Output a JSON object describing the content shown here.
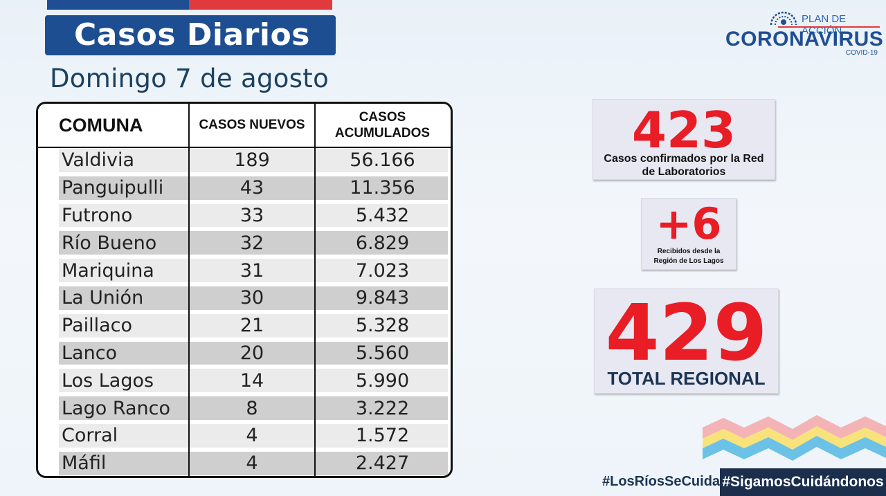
{
  "header": {
    "title": "Casos Diarios",
    "subtitle": "Domingo 7 de agosto"
  },
  "logo": {
    "plan": "PLAN DE ACCIÓN",
    "name": "CORONAVIRUS",
    "sub": "COVID-19"
  },
  "table": {
    "headers": [
      "COMUNA",
      "CASOS NUEVOS",
      "CASOS ACUMULADOS"
    ],
    "rows": [
      [
        "Valdivia",
        "189",
        "56.166"
      ],
      [
        "Panguipulli",
        "43",
        "11.356"
      ],
      [
        "Futrono",
        "33",
        "5.432"
      ],
      [
        "Río Bueno",
        "32",
        "6.829"
      ],
      [
        "Mariquina",
        "31",
        "7.023"
      ],
      [
        "La Unión",
        "30",
        "9.843"
      ],
      [
        "Paillaco",
        "21",
        "5.328"
      ],
      [
        "Lanco",
        "20",
        "5.560"
      ],
      [
        "Los Lagos",
        "14",
        "5.990"
      ],
      [
        "Lago Ranco",
        "8",
        "3.222"
      ],
      [
        "Corral",
        "4",
        "1.572"
      ],
      [
        "Máfil",
        "4",
        "2.427"
      ]
    ]
  },
  "cards": {
    "lab": {
      "value": "423",
      "label": "Casos confirmados  por la Red de Laboratorios"
    },
    "other": {
      "value": "+6",
      "label": "Recibidos  desde la Región de Los Lagos"
    },
    "total": {
      "value": "429",
      "label": "TOTAL REGIONAL"
    }
  },
  "footer": {
    "hashtag1": "#LosRíosSeCuida",
    "hashtag2": "#SigamosCuidándonos"
  },
  "colors": {
    "brand_blue": "#1e4e92",
    "accent_red": "#e81d25",
    "dark_navy": "#1b2f4d"
  }
}
